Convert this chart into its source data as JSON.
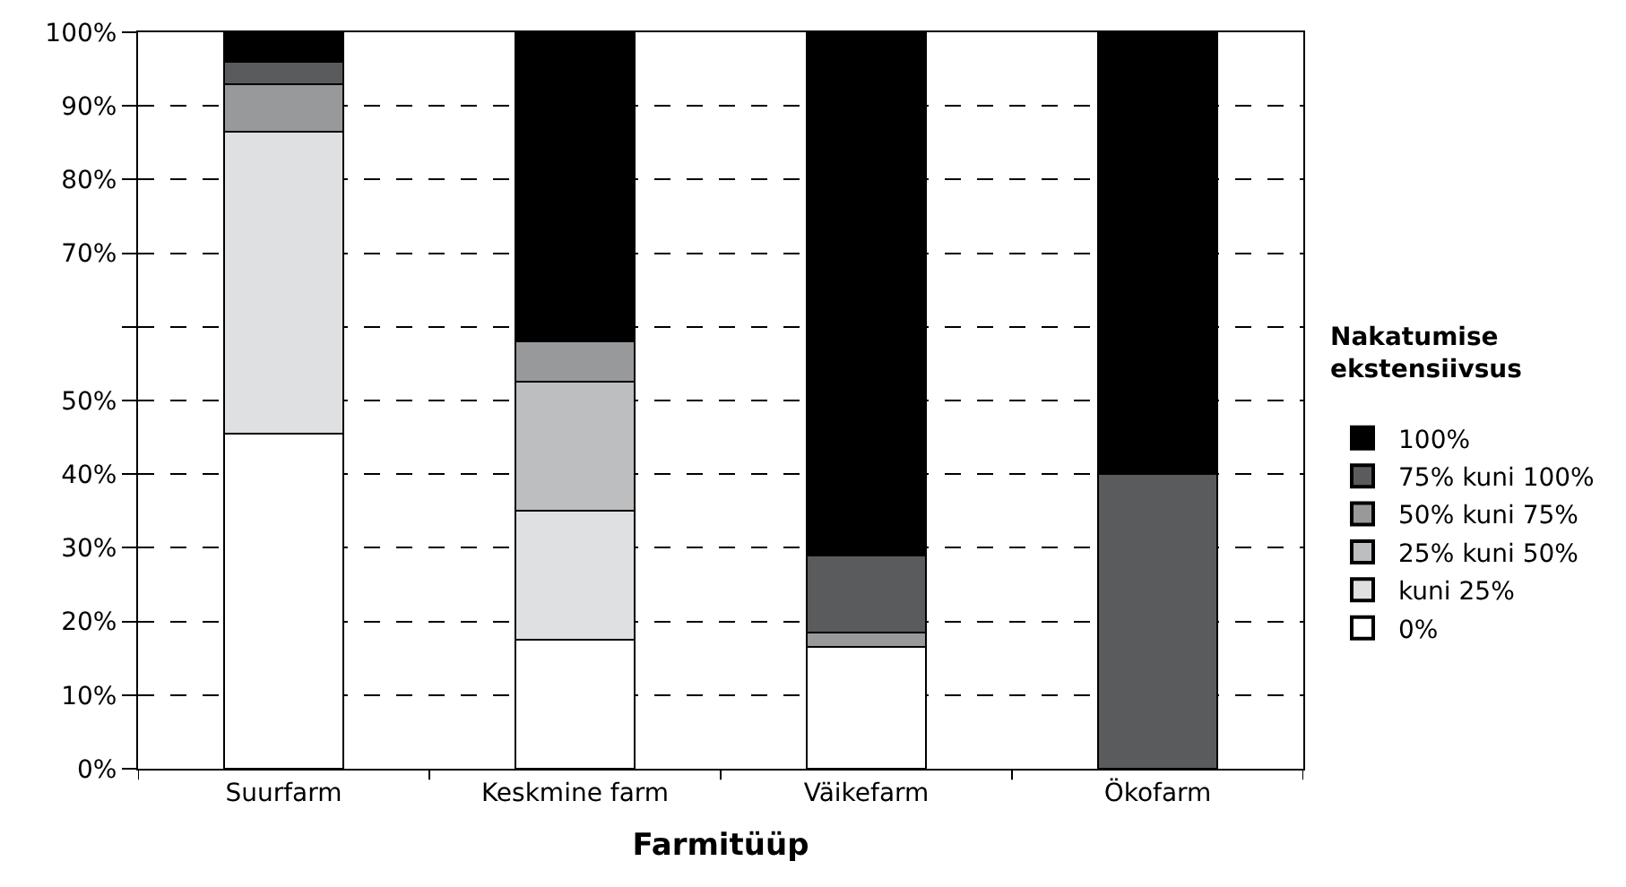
{
  "chart_data": {
    "type": "bar",
    "stacked": true,
    "xlabel": "Farmitüüp",
    "legend_title": "Nakatumise\nekstensiivsus",
    "categories": [
      "Suurfarm",
      "Keskmine farm",
      "Väikefarm",
      "Ökofarm"
    ],
    "series": [
      {
        "name": "0%",
        "color": "#ffffff",
        "values": [
          45.5,
          17.5,
          16.5,
          0
        ]
      },
      {
        "name": "kuni 25%",
        "color": "#dfe0e1",
        "values": [
          41,
          17.5,
          0,
          0
        ]
      },
      {
        "name": "25% kuni 50%",
        "color": "#bdbec0",
        "values": [
          0,
          17.5,
          0,
          0
        ]
      },
      {
        "name": "50% kuni 75%",
        "color": "#98999b",
        "values": [
          6.5,
          5.5,
          2,
          0
        ]
      },
      {
        "name": "75% kuni 100%",
        "color": "#5a5b5d",
        "values": [
          3,
          0,
          10.5,
          40
        ]
      },
      {
        "name": "100%",
        "color": "#000000",
        "values": [
          4,
          42,
          71,
          60
        ]
      }
    ],
    "ylim": [
      0,
      100
    ],
    "yticks": [
      {
        "value": 0,
        "label": "0%"
      },
      {
        "value": 10,
        "label": "10%"
      },
      {
        "value": 20,
        "label": "20%"
      },
      {
        "value": 30,
        "label": "30%"
      },
      {
        "value": 40,
        "label": "40%"
      },
      {
        "value": 50,
        "label": "50%"
      },
      {
        "value": 60,
        "label": null
      },
      {
        "value": 70,
        "label": "70%"
      },
      {
        "value": 80,
        "label": "80%"
      },
      {
        "value": 90,
        "label": "90%"
      },
      {
        "value": 100,
        "label": "100%"
      }
    ],
    "grid": "y",
    "legend": "right"
  }
}
